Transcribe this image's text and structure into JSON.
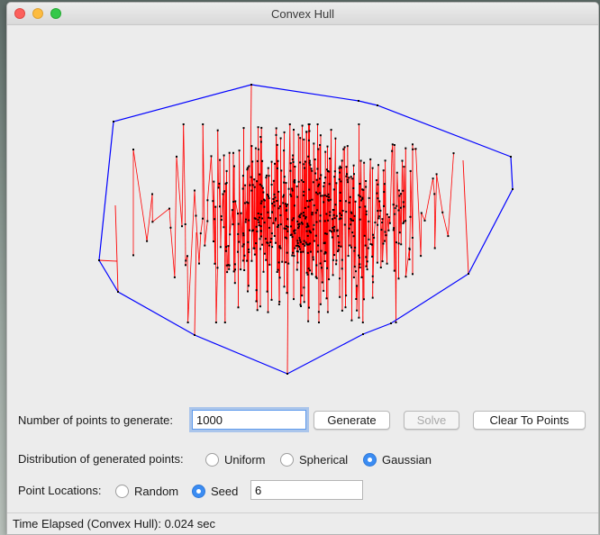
{
  "window": {
    "title": "Convex Hull"
  },
  "canvas": {
    "hull_color": "#0000ff",
    "line_color": "#ff0000",
    "point_color": "#000000",
    "points_count": 1000,
    "distribution": "gaussian",
    "seed": 6
  },
  "controls": {
    "count_label": "Number of points to generate:",
    "count_value": "1000",
    "generate_label": "Generate",
    "solve_label": "Solve",
    "clear_label": "Clear To Points",
    "distribution_label": "Distribution of generated points:",
    "distribution_options": [
      "Uniform",
      "Spherical",
      "Gaussian"
    ],
    "distribution_selected": "Gaussian",
    "locations_label": "Point Locations:",
    "location_random_label": "Random",
    "location_seed_label": "Seed",
    "location_selected": "Seed",
    "seed_value": "6"
  },
  "status": {
    "text": "Time Elapsed (Convex Hull): 0.024 sec"
  }
}
